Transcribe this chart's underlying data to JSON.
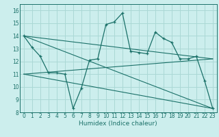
{
  "xlabel": "Humidex (Indice chaleur)",
  "ylabel": "",
  "xlim": [
    -0.5,
    23.5
  ],
  "ylim": [
    8,
    16.5
  ],
  "xticks": [
    0,
    1,
    2,
    3,
    4,
    5,
    6,
    7,
    8,
    9,
    10,
    11,
    12,
    13,
    14,
    15,
    16,
    17,
    18,
    19,
    20,
    21,
    22,
    23
  ],
  "yticks": [
    8,
    9,
    10,
    11,
    12,
    13,
    14,
    15,
    16
  ],
  "bg_color": "#cceeed",
  "grid_color": "#aad8d5",
  "line_color": "#1a7068",
  "series": [
    {
      "x": [
        0,
        1,
        2,
        3,
        4,
        5,
        6,
        7,
        8,
        9,
        10,
        11,
        12,
        13,
        14,
        15,
        16,
        17,
        18,
        19,
        20,
        21,
        22,
        23
      ],
      "y": [
        14.0,
        13.1,
        12.4,
        11.1,
        11.1,
        11.0,
        8.3,
        9.9,
        12.1,
        12.2,
        14.9,
        15.1,
        15.8,
        12.8,
        12.7,
        12.6,
        14.3,
        13.8,
        13.5,
        12.2,
        12.2,
        12.4,
        10.5,
        8.3
      ]
    },
    {
      "x": [
        0,
        23
      ],
      "y": [
        14.0,
        8.3
      ]
    },
    {
      "x": [
        0,
        23
      ],
      "y": [
        11.0,
        12.2
      ]
    },
    {
      "x": [
        0,
        23
      ],
      "y": [
        11.0,
        8.3
      ]
    },
    {
      "x": [
        0,
        23
      ],
      "y": [
        14.0,
        12.2
      ]
    }
  ],
  "title_fontsize": 6,
  "axis_fontsize": 6.5,
  "tick_fontsize": 5.5
}
